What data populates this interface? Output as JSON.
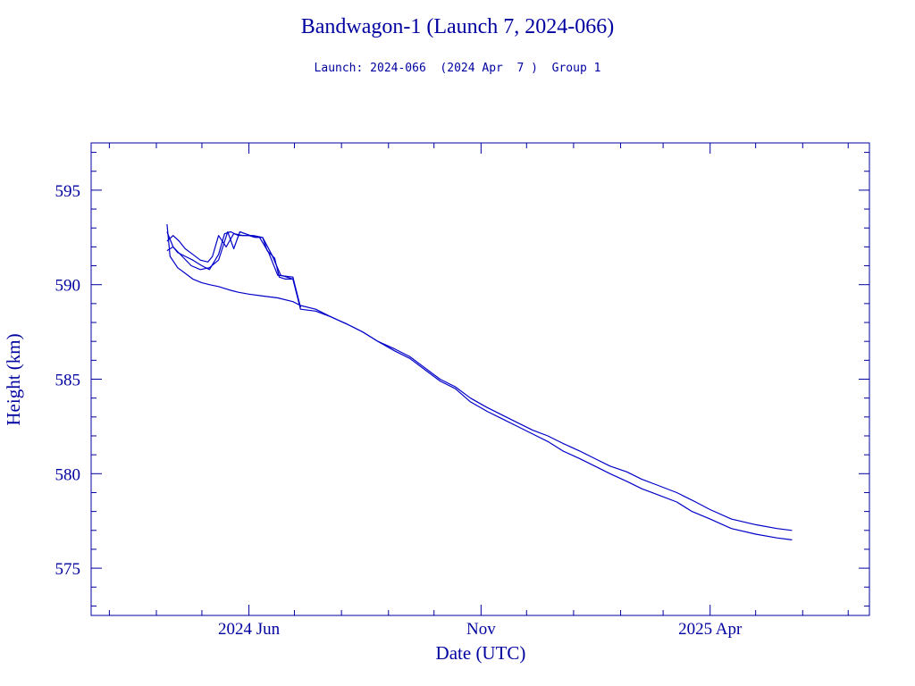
{
  "chart_data": {
    "type": "line",
    "title": "Bandwagon-1 (Launch 7, 2024-066)",
    "subtitle": "Launch: 2024-066  (2024 Apr  7 )  Group 1",
    "xlabel": "Date (UTC)",
    "ylabel": "Height (km)",
    "xlim": [
      "2024-02-18",
      "2025-07-15"
    ],
    "ylim": [
      572.5,
      597.5
    ],
    "x_ticks": [
      {
        "date": "2024-06-01",
        "label": "2024 Jun"
      },
      {
        "date": "2024-11-01",
        "label": "Nov"
      },
      {
        "date": "2025-04-01",
        "label": "2025 Apr"
      }
    ],
    "y_ticks": [
      575,
      580,
      585,
      590,
      595
    ],
    "grid": false,
    "legend": "none",
    "colors": {
      "axis": "#0000a0",
      "line": "#0000c8"
    },
    "series": [
      {
        "x": [
          "2024-04-08",
          "2024-04-10",
          "2024-04-12",
          "2024-04-15",
          "2024-04-20",
          "2024-04-25",
          "2024-05-01",
          "2024-05-06",
          "2024-05-12",
          "2024-05-16",
          "2024-05-20",
          "2024-05-25",
          "2024-06-01",
          "2024-06-05",
          "2024-06-10",
          "2024-06-13",
          "2024-06-18",
          "2024-06-21",
          "2024-06-25",
          "2024-06-30",
          "2024-07-05",
          "2024-07-15",
          "2024-07-25",
          "2024-08-05",
          "2024-08-15",
          "2024-08-25",
          "2024-09-05",
          "2024-09-15",
          "2024-09-25",
          "2024-10-05",
          "2024-10-15",
          "2024-10-25",
          "2024-11-05",
          "2024-11-15",
          "2024-11-25",
          "2024-12-05",
          "2024-12-15",
          "2024-12-25",
          "2025-01-05",
          "2025-01-15",
          "2025-01-25",
          "2025-02-05",
          "2025-02-15",
          "2025-02-25",
          "2025-03-10",
          "2025-03-20",
          "2025-04-01",
          "2025-04-15",
          "2025-05-01",
          "2025-05-15",
          "2025-05-25"
        ],
        "y": [
          592.8,
          592.4,
          592.0,
          591.7,
          591.5,
          591.3,
          591.0,
          590.8,
          591.6,
          592.7,
          592.8,
          592.6,
          592.6,
          592.5,
          592.5,
          591.8,
          591.4,
          590.4,
          590.3,
          590.3,
          588.7,
          588.6,
          588.3,
          587.9,
          587.5,
          587.0,
          586.6,
          586.2,
          585.6,
          585.0,
          584.6,
          584.0,
          583.5,
          583.1,
          582.7,
          582.3,
          582.0,
          581.6,
          581.2,
          580.8,
          580.4,
          580.1,
          579.7,
          579.4,
          579.0,
          578.6,
          578.1,
          577.6,
          577.3,
          577.1,
          577.0
        ]
      },
      {
        "x": [
          "2024-04-08",
          "2024-04-10",
          "2024-04-15",
          "2024-04-20",
          "2024-04-25",
          "2024-05-01",
          "2024-05-06",
          "2024-05-12",
          "2024-05-16",
          "2024-05-20",
          "2024-05-25",
          "2024-06-01",
          "2024-06-10",
          "2024-06-20",
          "2024-06-30",
          "2024-07-05",
          "2024-07-15",
          "2024-07-25",
          "2024-08-05",
          "2024-08-15",
          "2024-08-25",
          "2024-09-05",
          "2024-09-15",
          "2024-09-25",
          "2024-10-05",
          "2024-10-15",
          "2024-10-25",
          "2024-11-05",
          "2024-11-15",
          "2024-11-25",
          "2024-12-05",
          "2024-12-15",
          "2024-12-25",
          "2025-01-05",
          "2025-01-15",
          "2025-01-25",
          "2025-02-05",
          "2025-02-15",
          "2025-02-25",
          "2025-03-10",
          "2025-03-20",
          "2025-04-01",
          "2025-04-15",
          "2025-05-01",
          "2025-05-15",
          "2025-05-25"
        ],
        "y": [
          593.2,
          591.5,
          590.9,
          590.6,
          590.3,
          590.1,
          590.0,
          589.9,
          589.8,
          589.7,
          589.6,
          589.5,
          589.4,
          589.3,
          589.1,
          588.9,
          588.7,
          588.3,
          587.9,
          587.5,
          587.0,
          586.5,
          586.1,
          585.5,
          584.9,
          584.5,
          583.8,
          583.3,
          582.9,
          582.5,
          582.1,
          581.7,
          581.2,
          580.8,
          580.4,
          580.0,
          579.6,
          579.2,
          578.9,
          578.5,
          578.0,
          577.6,
          577.1,
          576.8,
          576.6,
          576.5
        ]
      },
      {
        "x": [
          "2024-04-08",
          "2024-04-12",
          "2024-04-16",
          "2024-04-20",
          "2024-04-25",
          "2024-04-30",
          "2024-05-05",
          "2024-05-08",
          "2024-05-12",
          "2024-05-17",
          "2024-05-22",
          "2024-05-28",
          "2024-06-04",
          "2024-06-10",
          "2024-06-16",
          "2024-06-22",
          "2024-06-30",
          "2024-07-05"
        ],
        "y": [
          592.3,
          592.6,
          592.3,
          591.9,
          591.6,
          591.3,
          591.2,
          591.5,
          592.6,
          592.0,
          592.7,
          592.6,
          592.6,
          592.5,
          591.6,
          590.5,
          590.3,
          588.8
        ]
      },
      {
        "x": [
          "2024-04-08",
          "2024-04-12",
          "2024-04-18",
          "2024-04-24",
          "2024-04-30",
          "2024-05-06",
          "2024-05-12",
          "2024-05-18",
          "2024-05-22",
          "2024-05-26",
          "2024-06-02",
          "2024-06-08",
          "2024-06-14",
          "2024-06-20",
          "2024-06-30",
          "2024-07-05"
        ],
        "y": [
          591.8,
          592.0,
          591.5,
          591.0,
          590.8,
          590.9,
          591.3,
          592.8,
          591.9,
          592.8,
          592.6,
          592.5,
          591.7,
          590.5,
          590.4,
          588.8
        ]
      }
    ]
  }
}
